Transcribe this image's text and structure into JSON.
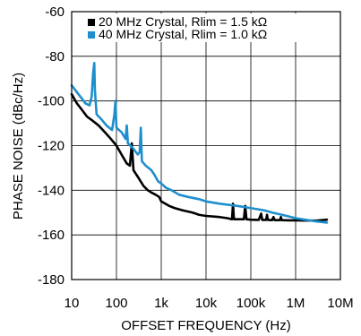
{
  "chart_data": {
    "type": "line",
    "title": "",
    "xlabel": "OFFSET FREQUENCY (Hz)",
    "ylabel": "PHASE NOISE (dBc/Hz)",
    "x_scale": "log",
    "xlim": [
      10,
      10000000
    ],
    "ylim": [
      -180,
      -60
    ],
    "grid": true,
    "legend_position": "top-right",
    "x_tick_values": [
      10,
      100,
      1000,
      10000,
      100000,
      1000000,
      10000000
    ],
    "x_tick_labels": [
      "10",
      "100",
      "1k",
      "10k",
      "100k",
      "1M",
      "10M"
    ],
    "y_tick_values": [
      -60,
      -80,
      -100,
      -120,
      -140,
      -160,
      -180
    ],
    "y_tick_labels": [
      "-60",
      "-80",
      "-100",
      "-120",
      "-140",
      "-160",
      "-180"
    ],
    "series": [
      {
        "name": "20 MHz Crystal, Rlim = 1.5 kΩ",
        "color": "#000000",
        "points": [
          [
            10,
            -97
          ],
          [
            13,
            -101
          ],
          [
            17,
            -104
          ],
          [
            22,
            -107
          ],
          [
            30,
            -109
          ],
          [
            40,
            -111
          ],
          [
            55,
            -114
          ],
          [
            75,
            -117
          ],
          [
            100,
            -120
          ],
          [
            130,
            -124
          ],
          [
            170,
            -128
          ],
          [
            200,
            -129
          ],
          [
            220,
            -119
          ],
          [
            240,
            -131
          ],
          [
            300,
            -134
          ],
          [
            400,
            -138
          ],
          [
            500,
            -140
          ],
          [
            600,
            -141
          ],
          [
            750,
            -142
          ],
          [
            900,
            -143
          ],
          [
            1000,
            -145
          ],
          [
            1500,
            -147
          ],
          [
            2000,
            -148
          ],
          [
            3000,
            -149
          ],
          [
            5000,
            -150
          ],
          [
            7000,
            -151
          ],
          [
            10000,
            -151.5
          ],
          [
            20000,
            -152
          ],
          [
            30000,
            -152.5
          ],
          [
            38000,
            -153
          ],
          [
            40000,
            -146
          ],
          [
            42000,
            -153
          ],
          [
            50000,
            -153
          ],
          [
            70000,
            -153
          ],
          [
            75000,
            -147
          ],
          [
            80000,
            -153
          ],
          [
            100000,
            -153.2
          ],
          [
            150000,
            -153.3
          ],
          [
            170000,
            -150.5
          ],
          [
            180000,
            -153.3
          ],
          [
            220000,
            -153.3
          ],
          [
            230000,
            -151
          ],
          [
            240000,
            -153.3
          ],
          [
            300000,
            -153.4
          ],
          [
            320000,
            -152
          ],
          [
            340000,
            -153.4
          ],
          [
            450000,
            -153.4
          ],
          [
            470000,
            -152
          ],
          [
            490000,
            -153.4
          ],
          [
            700000,
            -153.5
          ],
          [
            1000000,
            -153.5
          ],
          [
            2000000,
            -153.6
          ],
          [
            3000000,
            -153.6
          ],
          [
            5000000,
            -153.2
          ]
        ]
      },
      {
        "name": "40 MHz Crystal, Rlim = 1.0 kΩ",
        "color": "#1e8fcc",
        "points": [
          [
            10,
            -93
          ],
          [
            13,
            -96
          ],
          [
            17,
            -99
          ],
          [
            20,
            -101
          ],
          [
            25,
            -102
          ],
          [
            28,
            -98
          ],
          [
            30,
            -88
          ],
          [
            32,
            -83
          ],
          [
            33,
            -95
          ],
          [
            36,
            -106
          ],
          [
            45,
            -108
          ],
          [
            60,
            -111
          ],
          [
            80,
            -113
          ],
          [
            90,
            -106
          ],
          [
            95,
            -100
          ],
          [
            100,
            -112
          ],
          [
            130,
            -114
          ],
          [
            160,
            -117
          ],
          [
            170,
            -111
          ],
          [
            180,
            -119
          ],
          [
            230,
            -121
          ],
          [
            300,
            -124
          ],
          [
            330,
            -123
          ],
          [
            350,
            -112
          ],
          [
            370,
            -127
          ],
          [
            450,
            -129
          ],
          [
            600,
            -131
          ],
          [
            700,
            -133
          ],
          [
            850,
            -136
          ],
          [
            1000,
            -137
          ],
          [
            1300,
            -139
          ],
          [
            1700,
            -140
          ],
          [
            2500,
            -142
          ],
          [
            4000,
            -143
          ],
          [
            7000,
            -144
          ],
          [
            10000,
            -145
          ],
          [
            20000,
            -146
          ],
          [
            50000,
            -147
          ],
          [
            100000,
            -148
          ],
          [
            200000,
            -149
          ],
          [
            300000,
            -150
          ],
          [
            500000,
            -151
          ],
          [
            1000000,
            -152.5
          ],
          [
            2000000,
            -153.5
          ],
          [
            3000000,
            -154
          ],
          [
            5000000,
            -154.5
          ]
        ]
      }
    ]
  }
}
